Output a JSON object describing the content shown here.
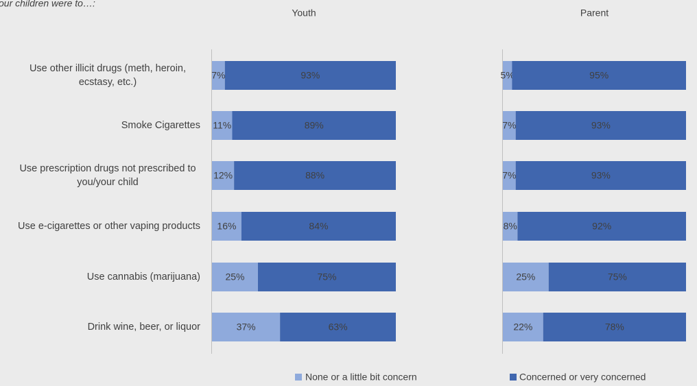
{
  "chart_data": [
    {
      "type": "bar",
      "subtitle": "our children were to…:",
      "title": "Youth",
      "categories": [
        "Use other illicit drugs (meth, heroin, ecstasy, etc.)",
        "Smoke Cigarettes",
        "Use prescription drugs not prescribed to you/your child",
        "Use e-cigarettes or other vaping products",
        "Use cannabis (marijuana)",
        "Drink wine, beer, or liquor"
      ],
      "xlim": [
        0,
        100
      ],
      "series": [
        {
          "name": "None or a little bit concern",
          "color": "#8faadc",
          "values": [
            7,
            11,
            12,
            16,
            25,
            37
          ],
          "value_labels": [
            "7%",
            "11%",
            "12%",
            "16%",
            "25%",
            "37%"
          ]
        },
        {
          "name": "Concerned or very concerned",
          "color": "#4066ae",
          "values": [
            93,
            89,
            88,
            84,
            75,
            63
          ],
          "value_labels": [
            "93%",
            "89%",
            "88%",
            "84%",
            "75%",
            "63%"
          ]
        }
      ]
    },
    {
      "type": "bar",
      "title": "Parent",
      "xlim": [
        0,
        100
      ],
      "series": [
        {
          "color": "#8faadc",
          "values": [
            5,
            7,
            7,
            8,
            25,
            22
          ],
          "value_labels": [
            "5%",
            "7%",
            "7%",
            "8%",
            "25%",
            "22%"
          ]
        },
        {
          "color": "#4066ae",
          "values": [
            95,
            93,
            93,
            92,
            75,
            78
          ],
          "value_labels": [
            "95%",
            "93%",
            "93%",
            "92%",
            "75%",
            "78%"
          ]
        }
      ]
    }
  ]
}
